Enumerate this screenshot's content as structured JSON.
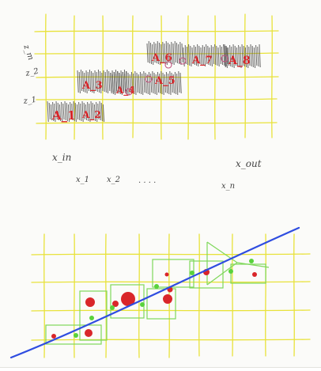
{
  "colors": {
    "background": "#fbfbf9",
    "grid": "#e8e23a",
    "scribble": "#4a4a4a",
    "block_label": "#d9262a",
    "link_circle": "#c0507a",
    "green_box": "#7fd85a",
    "green_dot": "#59d23c",
    "red_dot": "#d9262a",
    "line": "#2f4de0"
  },
  "top_panel": {
    "row_labels": [
      "z_1",
      "z_2",
      "z_m"
    ],
    "blocks": [
      {
        "label": "A_1",
        "row": 1
      },
      {
        "label": "A_2",
        "row": 1
      },
      {
        "label": "A_3",
        "row": 2
      },
      {
        "label": "A_4",
        "row": 2
      },
      {
        "label": "A_5",
        "row": 2
      },
      {
        "label": "A_6",
        "row": 3
      },
      {
        "label": "A_7",
        "row": 3
      },
      {
        "label": "A_8",
        "row": 3
      }
    ],
    "input_label": "x_in",
    "output_label": "x_out",
    "axis_labels": [
      "x_1",
      "x_2",
      ". . . .",
      "x_n"
    ]
  },
  "bottom_panel": {
    "boxes": 7,
    "red_points": 10,
    "green_points": 8,
    "fit_line": "blue"
  }
}
